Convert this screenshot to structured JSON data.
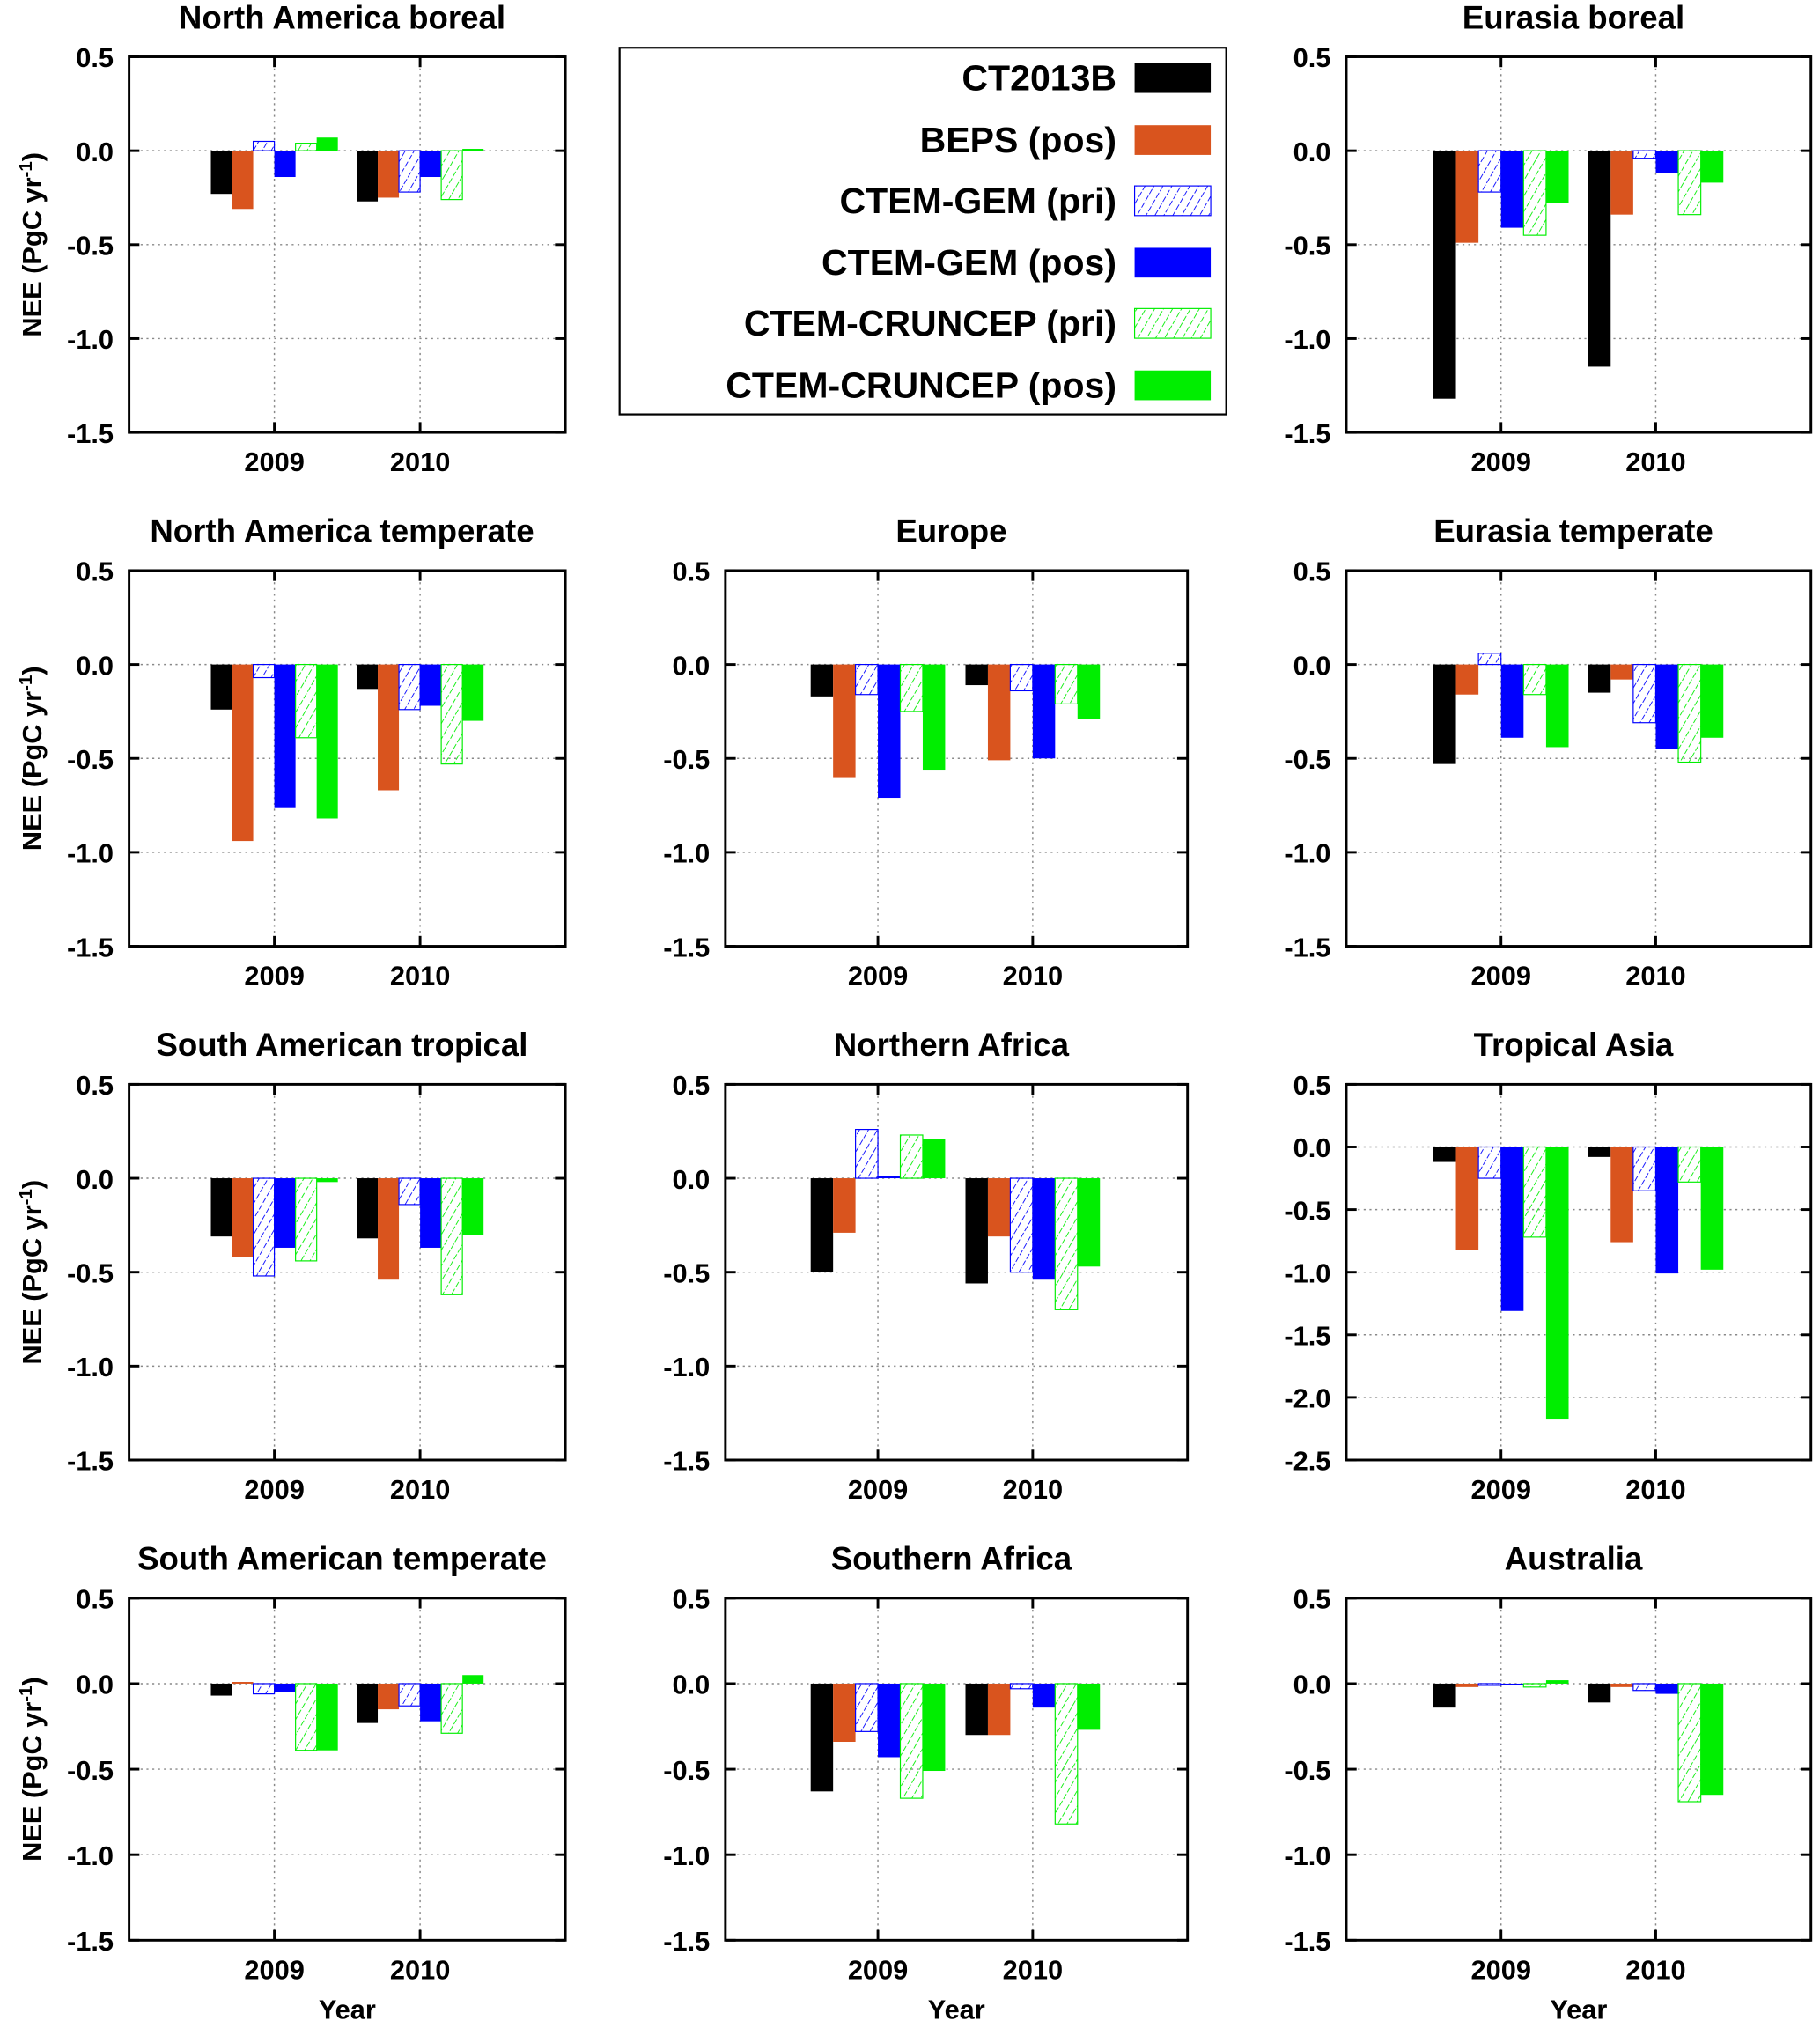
{
  "chart_data": {
    "type": "bar",
    "categories": [
      "2009",
      "2010"
    ],
    "ylabel": "NEE (PgC yr-1)",
    "ylabel_parts": {
      "main": "NEE (PgC yr",
      "sup": "-1",
      "close": ")"
    },
    "xlabel": "Year",
    "grid": true,
    "legend": {
      "placement": "top-center",
      "entries": [
        {
          "name": "CT2013B",
          "color": "#000000",
          "pattern": "solid"
        },
        {
          "name": "BEPS (pos)",
          "color": "#d9541e",
          "pattern": "solid"
        },
        {
          "name": "CTEM-GEM (pri)",
          "color": "#0000ff",
          "pattern": "hatched"
        },
        {
          "name": "CTEM-GEM (pos)",
          "color": "#0000ff",
          "pattern": "solid"
        },
        {
          "name": "CTEM-CRUNCEP (pri)",
          "color": "#00ee00",
          "pattern": "hatched"
        },
        {
          "name": "CTEM-CRUNCEP (pos)",
          "color": "#00ee00",
          "pattern": "solid"
        }
      ]
    },
    "panels": [
      {
        "title": "North America boreal",
        "ylim": [
          -1.5,
          0.5
        ],
        "yticks": [
          "0.5",
          "0.0",
          "-0.5",
          "-1.0",
          "-1.5"
        ],
        "values": [
          [
            -0.23,
            -0.31,
            0.05,
            -0.14,
            0.04,
            0.07
          ],
          [
            -0.27,
            -0.25,
            -0.22,
            -0.14,
            -0.26,
            0.01
          ]
        ]
      },
      {
        "title": "Eurasia boreal",
        "ylim": [
          -1.5,
          0.5
        ],
        "yticks": [
          "0.5",
          "0.0",
          "-0.5",
          "-1.0",
          "-1.5"
        ],
        "values": [
          [
            -1.32,
            -0.49,
            -0.22,
            -0.41,
            -0.45,
            -0.28
          ],
          [
            -1.15,
            -0.34,
            -0.04,
            -0.12,
            -0.34,
            -0.17
          ]
        ]
      },
      {
        "title": "North America temperate",
        "ylim": [
          -1.5,
          0.5
        ],
        "yticks": [
          "0.5",
          "0.0",
          "-0.5",
          "-1.0",
          "-1.5"
        ],
        "values": [
          [
            -0.24,
            -0.94,
            -0.07,
            -0.76,
            -0.39,
            -0.82
          ],
          [
            -0.13,
            -0.67,
            -0.24,
            -0.22,
            -0.53,
            -0.3
          ]
        ]
      },
      {
        "title": "Europe",
        "ylim": [
          -1.5,
          0.5
        ],
        "yticks": [
          "0.5",
          "0.0",
          "-0.5",
          "-1.0",
          "-1.5"
        ],
        "values": [
          [
            -0.17,
            -0.6,
            -0.16,
            -0.71,
            -0.25,
            -0.56
          ],
          [
            -0.11,
            -0.51,
            -0.14,
            -0.5,
            -0.21,
            -0.29
          ]
        ]
      },
      {
        "title": "Eurasia temperate",
        "ylim": [
          -1.5,
          0.5
        ],
        "yticks": [
          "0.5",
          "0.0",
          "-0.5",
          "-1.0",
          "-1.5"
        ],
        "values": [
          [
            -0.53,
            -0.16,
            0.06,
            -0.39,
            -0.16,
            -0.44
          ],
          [
            -0.15,
            -0.08,
            -0.31,
            -0.45,
            -0.52,
            -0.39
          ]
        ]
      },
      {
        "title": "South American tropical",
        "ylim": [
          -1.5,
          0.5
        ],
        "yticks": [
          "0.5",
          "0.0",
          "-0.5",
          "-1.0",
          "-1.5"
        ],
        "values": [
          [
            -0.31,
            -0.42,
            -0.52,
            -0.37,
            -0.44,
            -0.02
          ],
          [
            -0.32,
            -0.54,
            -0.14,
            -0.37,
            -0.62,
            -0.3
          ]
        ]
      },
      {
        "title": "Northern Africa",
        "ylim": [
          -1.5,
          0.5
        ],
        "yticks": [
          "0.5",
          "0.0",
          "-0.5",
          "-1.0",
          "-1.5"
        ],
        "values": [
          [
            -0.5,
            -0.29,
            0.26,
            0.01,
            0.23,
            0.21
          ],
          [
            -0.56,
            -0.31,
            -0.5,
            -0.54,
            -0.7,
            -0.47
          ]
        ]
      },
      {
        "title": "Tropical Asia",
        "ylim": [
          -2.5,
          0.5
        ],
        "yticks": [
          "0.5",
          "0.0",
          "-0.5",
          "-1.0",
          "-1.5",
          "-2.0",
          "-2.5"
        ],
        "values": [
          [
            -0.12,
            -0.82,
            -0.25,
            -1.31,
            -0.72,
            -2.17
          ],
          [
            -0.08,
            -0.76,
            -0.35,
            -1.01,
            -0.28,
            -0.98
          ]
        ]
      },
      {
        "title": "South American temperate",
        "ylim": [
          -1.5,
          0.5
        ],
        "yticks": [
          "0.5",
          "0.0",
          "-0.5",
          "-1.0",
          "-1.5"
        ],
        "values": [
          [
            -0.07,
            0.01,
            -0.06,
            -0.05,
            -0.39,
            -0.39
          ],
          [
            -0.23,
            -0.15,
            -0.13,
            -0.22,
            -0.29,
            0.05
          ]
        ]
      },
      {
        "title": "Southern Africa",
        "ylim": [
          -1.5,
          0.5
        ],
        "yticks": [
          "0.5",
          "0.0",
          "-0.5",
          "-1.0",
          "-1.5"
        ],
        "values": [
          [
            -0.63,
            -0.34,
            -0.28,
            -0.43,
            -0.67,
            -0.51
          ],
          [
            -0.3,
            -0.3,
            -0.03,
            -0.14,
            -0.82,
            -0.27
          ]
        ]
      },
      {
        "title": "Australia",
        "ylim": [
          -1.5,
          0.5
        ],
        "yticks": [
          "0.5",
          "0.0",
          "-0.5",
          "-1.0",
          "-1.5"
        ],
        "values": [
          [
            -0.14,
            -0.02,
            -0.01,
            -0.01,
            -0.02,
            0.02
          ],
          [
            -0.11,
            -0.02,
            -0.04,
            -0.06,
            -0.69,
            -0.65
          ]
        ]
      }
    ]
  }
}
